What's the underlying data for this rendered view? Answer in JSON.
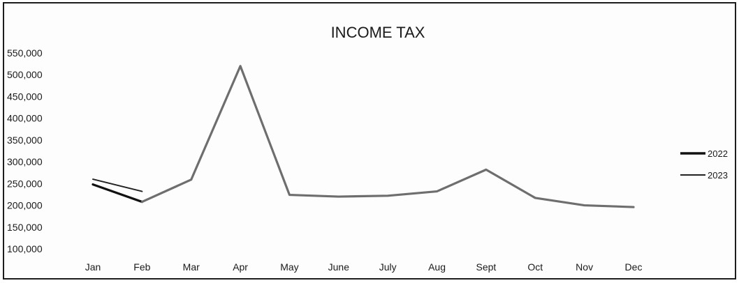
{
  "chart_data": {
    "type": "line",
    "title": "INCOME TAX",
    "xlabel": "",
    "ylabel": "",
    "categories": [
      "Jan",
      "Feb",
      "Mar",
      "Apr",
      "May",
      "June",
      "July",
      "Aug",
      "Sept",
      "Oct",
      "Nov",
      "Dec"
    ],
    "ylim": [
      100000,
      550000
    ],
    "yticks": [
      100000,
      150000,
      200000,
      250000,
      300000,
      350000,
      400000,
      450000,
      500000,
      550000
    ],
    "ytick_labels": [
      "100,000",
      "150,000",
      "200,000",
      "250,000",
      "300,000",
      "350,000",
      "400,000",
      "450,000",
      "500,000",
      "550,000"
    ],
    "grid": false,
    "legend_position": "right",
    "series": [
      {
        "name": "2022",
        "color": "#111111",
        "values": [
          248000,
          208000,
          259000,
          520000,
          224000,
          220000,
          222000,
          232000,
          282000,
          217000,
          200000,
          196000
        ]
      },
      {
        "name": "2023",
        "color": "#222222",
        "values": [
          260000,
          232000,
          null,
          null,
          null,
          null,
          null,
          null,
          null,
          null,
          null,
          null
        ]
      }
    ],
    "overlay_color": "#6e6e6e"
  }
}
